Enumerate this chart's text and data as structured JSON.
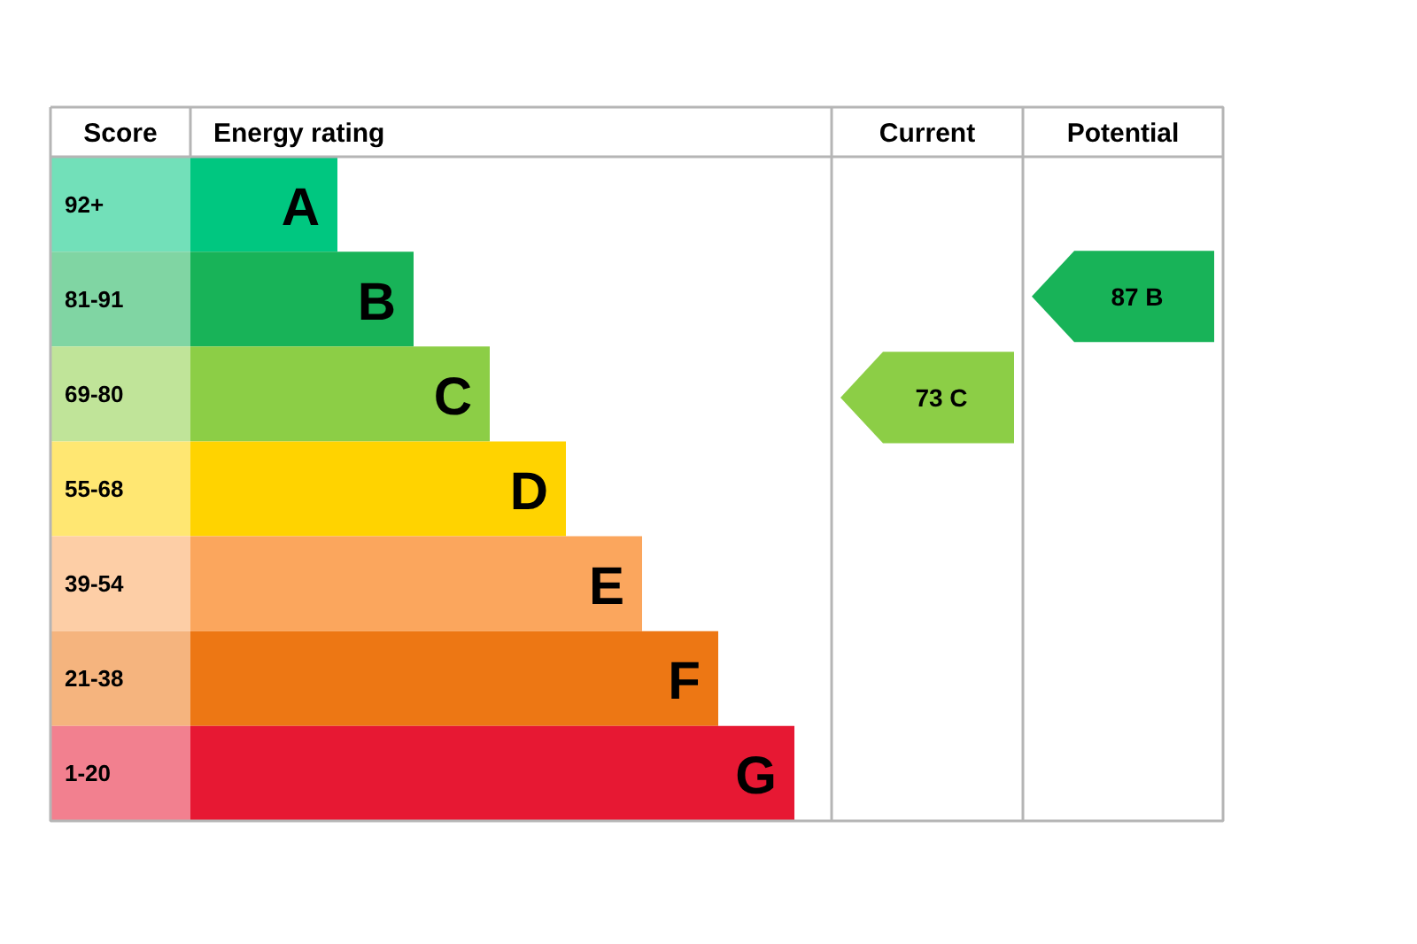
{
  "chart_data": {
    "type": "other",
    "categories": [
      "92+",
      "81-91",
      "69-80",
      "55-68",
      "39-54",
      "21-38",
      "1-20"
    ],
    "colors": [
      "#72e0b9",
      "#80d5a3",
      "#c0e499",
      "#ffe772",
      "#fdcea6",
      "#f5b47e",
      "#f2808f"
    ],
    "value_labels": [
      "A",
      "B",
      "C",
      "D",
      "E",
      "F",
      "G"
    ],
    "series": [
      {
        "values": [
          null,
          null,
          73,
          null,
          null,
          null,
          null
        ],
        "value_labels": [
          null,
          null,
          "73 C",
          null,
          null,
          null,
          null
        ]
      },
      {
        "values": [
          null,
          87,
          null,
          null,
          null,
          null,
          null
        ],
        "value_labels": [
          null,
          "87 B",
          null,
          null,
          null,
          null,
          null
        ]
      }
    ],
    "annotations": [
      "Score",
      "Energy rating",
      "Current",
      "Potential"
    ]
  }
}
